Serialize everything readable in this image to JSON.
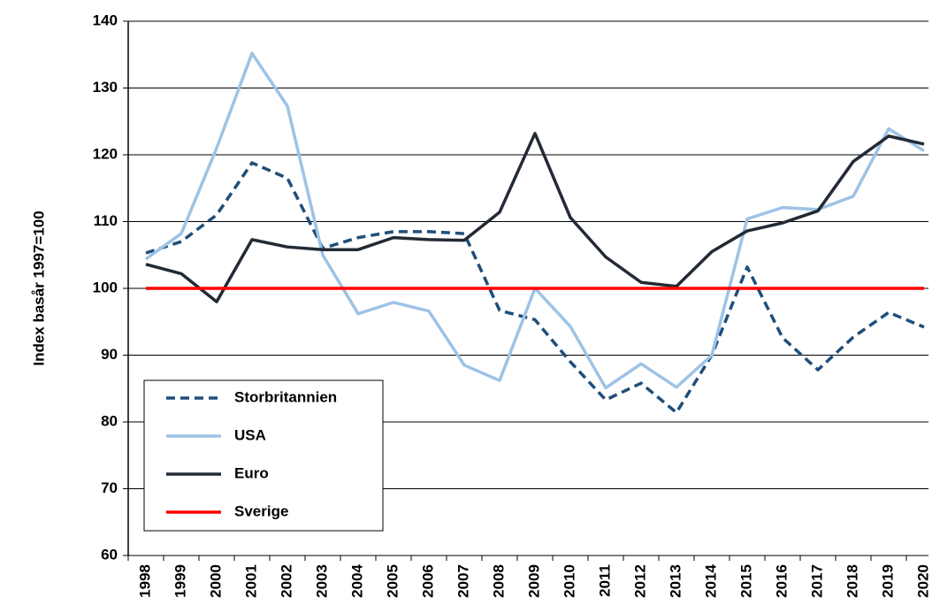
{
  "chart_data": {
    "type": "line",
    "y_label": "Index basår 1997=100",
    "categories": [
      "1998",
      "1999",
      "2000",
      "2001",
      "2002",
      "2003",
      "2004",
      "2005",
      "2006",
      "2007",
      "2008",
      "2009",
      "2010",
      "2011",
      "2012",
      "2013",
      "2014",
      "2015",
      "2016",
      "2017",
      "2018",
      "2019",
      "2020"
    ],
    "series": [
      {
        "name": "Storbritannien",
        "color": "#1f4e79",
        "dash": true,
        "values": [
          105.3,
          107,
          111,
          118.8,
          116.5,
          106,
          107.6,
          108.5,
          108.5,
          108.2,
          96.7,
          95.3,
          89,
          83.3,
          85.8,
          81.4,
          90,
          103.2,
          92.6,
          87.8,
          92.7,
          96.4,
          94.2
        ]
      },
      {
        "name": "USA",
        "color": "#9dc3e6",
        "dash": false,
        "values": [
          104.4,
          108.2,
          121,
          135.2,
          127.3,
          105,
          96.2,
          97.9,
          96.6,
          88.5,
          86.2,
          100,
          94.3,
          85.1,
          88.7,
          85.2,
          90,
          110.4,
          112.1,
          111.8,
          113.8,
          123.9,
          120.6
        ]
      },
      {
        "name": "Euro",
        "color": "#222a35",
        "dash": false,
        "values": [
          103.6,
          102.2,
          98,
          107.3,
          106.2,
          105.8,
          105.8,
          107.6,
          107.3,
          107.2,
          111.4,
          123.2,
          110.6,
          104.7,
          100.9,
          100.3,
          105.5,
          108.6,
          109.8,
          111.6,
          119,
          122.8,
          121.6
        ]
      },
      {
        "name": "Sverige",
        "color": "#ff0000",
        "dash": false,
        "values": [
          100,
          100,
          100,
          100,
          100,
          100,
          100,
          100,
          100,
          100,
          100,
          100,
          100,
          100,
          100,
          100,
          100,
          100,
          100,
          100,
          100,
          100,
          100
        ]
      }
    ],
    "ylim": [
      60,
      140
    ],
    "yticks": [
      60,
      70,
      80,
      90,
      100,
      110,
      120,
      130,
      140
    ],
    "grid": true
  }
}
